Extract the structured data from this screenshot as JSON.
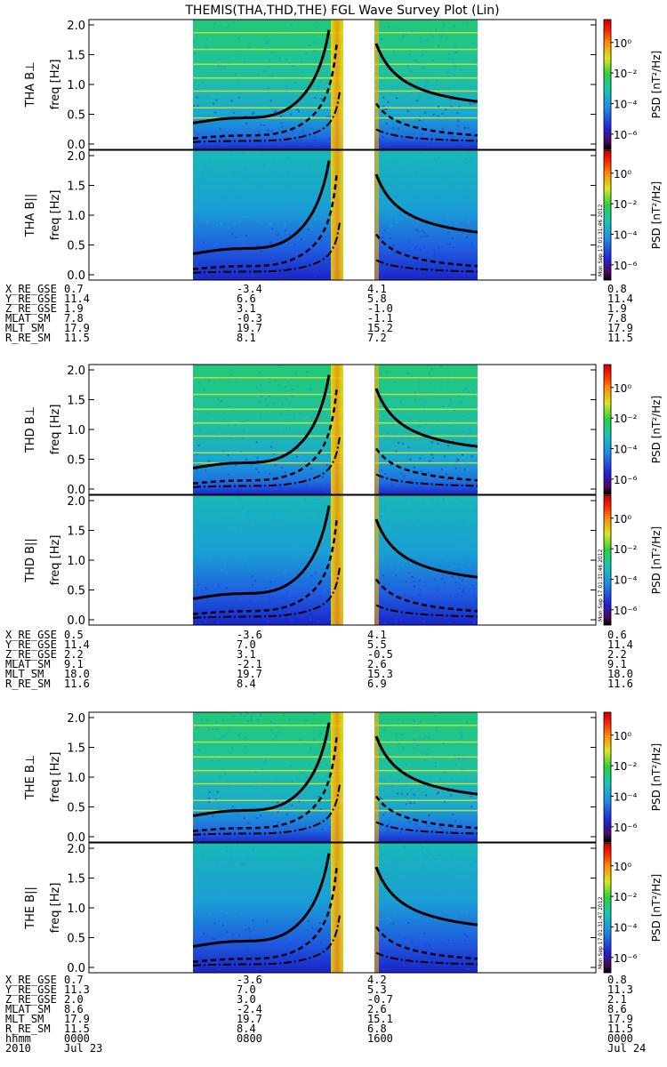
{
  "chart_data": {
    "type": "heatmap",
    "title": "THEMIS(THA,THD,THE) FGL Wave Survey Plot (Lin)",
    "panels": [
      {
        "label": "THA B⊥",
        "ylabel": "freq [Hz]",
        "stamp": ""
      },
      {
        "label": "THA B||",
        "ylabel": "freq [Hz]",
        "stamp": "Mon Sep 17 01:31:46 2012"
      },
      {
        "label": "THD B⊥",
        "ylabel": "freq [Hz]",
        "stamp": ""
      },
      {
        "label": "THD B||",
        "ylabel": "freq [Hz]",
        "stamp": "Mon Sep 17 01:31:46 2012"
      },
      {
        "label": "THE B⊥",
        "ylabel": "freq [Hz]",
        "stamp": ""
      },
      {
        "label": "THE B||",
        "ylabel": "freq [Hz]",
        "stamp": "Mon Sep 17 01:31:47 2012"
      }
    ],
    "yticks": [
      "0.0",
      "0.5",
      "1.0",
      "1.5",
      "2.0"
    ],
    "ylim": [
      0,
      2.0
    ],
    "colorbar": {
      "label": "PSD [nT²/Hz]",
      "ticks": [
        "10⁰",
        "10⁻²",
        "10⁻⁴",
        "10⁻⁶"
      ],
      "exponents": [
        0,
        -2,
        -4,
        -6
      ]
    },
    "orbit_blocks": [
      {
        "rows": [
          [
            "X_RE_GSE",
            "0.7",
            "-3.4",
            "4.1",
            "0.8"
          ],
          [
            "Y_RE_GSE",
            "11.4",
            "6.6",
            "5.8",
            "11.4"
          ],
          [
            "Z_RE_GSE",
            "1.9",
            "3.1",
            "-1.0",
            "1.9"
          ],
          [
            "MLAT_SM",
            "7.8",
            "-0.3",
            "-1.1",
            "7.8"
          ],
          [
            "MLT_SM",
            "17.9",
            "19.7",
            "15.2",
            "17.9"
          ],
          [
            "R_RE_SM",
            "11.5",
            "8.1",
            "7.2",
            "11.5"
          ]
        ]
      },
      {
        "rows": [
          [
            "X_RE_GSE",
            "0.5",
            "-3.6",
            "4.1",
            "0.6"
          ],
          [
            "Y_RE_GSE",
            "11.4",
            "7.0",
            "5.5",
            "11.4"
          ],
          [
            "Z_RE_GSE",
            "2.2",
            "3.1",
            "-0.5",
            "2.2"
          ],
          [
            "MLAT_SM",
            "9.1",
            "-2.1",
            "2.6",
            "9.1"
          ],
          [
            "MLT_SM",
            "18.0",
            "19.7",
            "15.3",
            "18.0"
          ],
          [
            "R_RE_SM",
            "11.6",
            "8.4",
            "6.9",
            "11.6"
          ]
        ]
      },
      {
        "rows": [
          [
            "X_RE_GSE",
            "0.7",
            "-3.6",
            "4.2",
            "0.8"
          ],
          [
            "Y_RE_GSE",
            "11.3",
            "7.0",
            "5.3",
            "11.3"
          ],
          [
            "Z_RE_GSE",
            "2.0",
            "3.0",
            "-0.7",
            "2.1"
          ],
          [
            "MLAT_SM",
            "8.6",
            "-2.4",
            "2.6",
            "8.6"
          ],
          [
            "MLT_SM",
            "17.9",
            "19.7",
            "15.1",
            "17.9"
          ],
          [
            "R_RE_SM",
            "11.5",
            "8.4",
            "6.8",
            "11.5"
          ],
          [
            "hhmm",
            "0000",
            "0800",
            "1600",
            "0000"
          ],
          [
            "2010",
            "Jul 23",
            "",
            "",
            "Jul 24"
          ]
        ]
      }
    ]
  }
}
